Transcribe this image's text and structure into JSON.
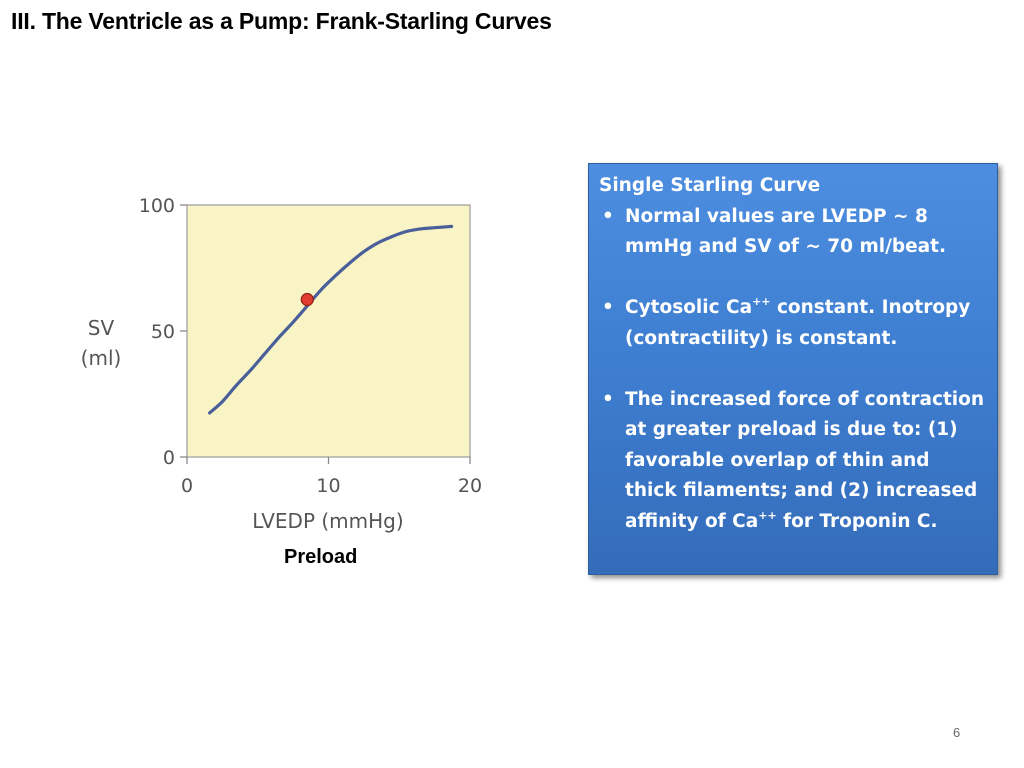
{
  "slide": {
    "title": "III. The Ventricle as a Pump: Frank-Starling Curves",
    "page_number": "6"
  },
  "chart_data": {
    "type": "line",
    "xlabel": "LVEDP (mmHg)",
    "ylabel_line1": "SV",
    "ylabel_line2": "(ml)",
    "xlim": [
      0,
      20
    ],
    "ylim": [
      0,
      100
    ],
    "x_ticks": [
      "0",
      "10",
      "20"
    ],
    "y_ticks": [
      "0",
      "50",
      "100"
    ],
    "grid": false,
    "plot_background": "#f9f4c6",
    "line_color": "#4a5f9a",
    "marker_color": "#e23c2f",
    "series": [
      {
        "x": [
          1.6,
          2.5,
          3.5,
          4.5,
          5.5,
          6.5,
          7.5,
          8.5,
          9.5,
          10.5,
          11.5,
          12.5,
          13.5,
          14.5,
          15.5,
          16.5,
          17.5,
          18.7
        ],
        "values": [
          17.5,
          22,
          28.5,
          34.5,
          41,
          47.5,
          53.5,
          60,
          66.5,
          72,
          77,
          81.5,
          85,
          87.5,
          89.5,
          90.5,
          91,
          91.5
        ]
      }
    ],
    "highlight_point": {
      "x": 8.5,
      "y": 62.5
    },
    "annotation": "Preload"
  },
  "info_box": {
    "heading": "Single Starling Curve",
    "bullets": [
      {
        "text": "Normal values are LVEDP ~ 8 mmHg and SV of ~ 70 ml/beat."
      },
      {
        "pre": "Cytosolic Ca",
        "sup": "++",
        "post": " constant.  Inotropy (contractility) is constant."
      },
      {
        "pre": "The increased force of contraction at greater preload is due to: (1) favorable overlap of thin and thick filaments; and (2) increased affinity of Ca",
        "sup": "++",
        "post": " for Troponin C."
      }
    ]
  }
}
